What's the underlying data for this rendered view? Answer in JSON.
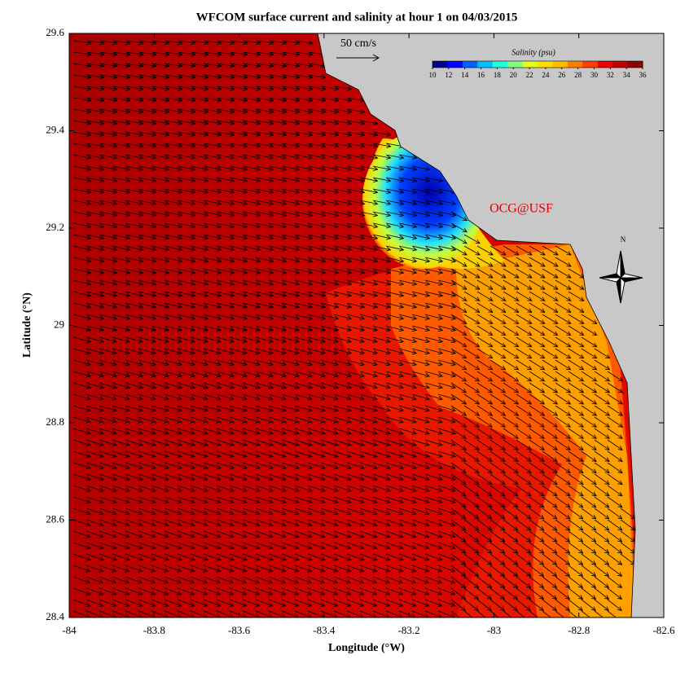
{
  "chart_data": {
    "type": "map",
    "title": "WFCOM surface current and salinity at hour 1 on 04/03/2015",
    "x_label": "Longitude (°W)",
    "y_label": "Latitude (°N)",
    "xlim": [
      -84,
      -82.6
    ],
    "xticks": [
      -84,
      -83.8,
      -83.6,
      -83.4,
      -83.2,
      -83,
      -82.8,
      -82.6
    ],
    "ylim": [
      28.4,
      29.6
    ],
    "yticks": [
      28.4,
      28.6,
      28.8,
      29,
      29.2,
      29.4,
      29.6
    ],
    "vector_scale_label": "50 cm/s",
    "credit": "OCG@USF",
    "north_label": "N",
    "colorbar": {
      "label": "Salinity (psu)",
      "lim": [
        10,
        36
      ],
      "ticks": [
        10,
        12,
        14,
        16,
        18,
        20,
        22,
        24,
        26,
        28,
        30,
        32,
        34,
        36
      ],
      "colors": [
        "#00008f",
        "#0000ff",
        "#0060ff",
        "#00bfff",
        "#20ffdf",
        "#80ff80",
        "#dfff20",
        "#ffdf00",
        "#ffbf00",
        "#ff8000",
        "#ff4000",
        "#ef0000",
        "#bf0000",
        "#8f0000"
      ]
    },
    "land_color": "#c8c8c8"
  }
}
